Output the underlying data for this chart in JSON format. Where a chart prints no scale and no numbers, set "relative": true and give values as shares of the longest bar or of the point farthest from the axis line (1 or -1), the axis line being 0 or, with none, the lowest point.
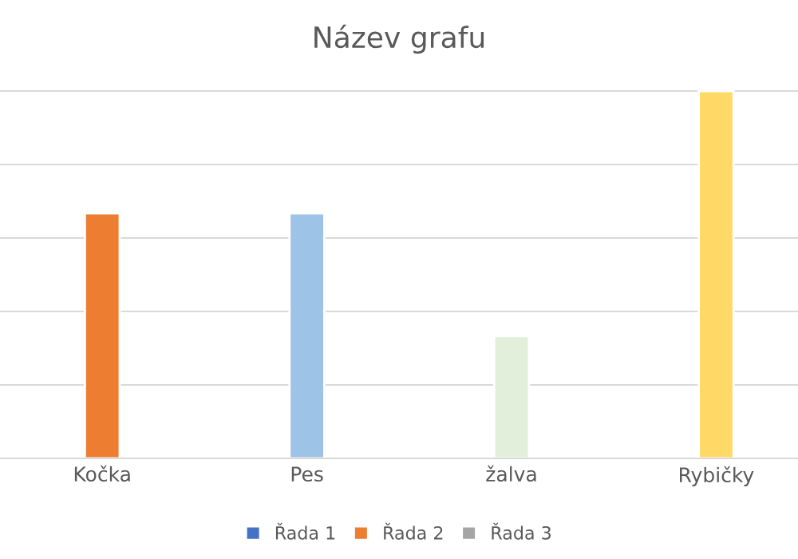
{
  "chart_data": {
    "type": "bar",
    "title": "Název grafu",
    "relative": true,
    "grid": "y",
    "legend": "bottom",
    "categories": [
      "Kočka",
      "Pes",
      "žalva",
      "Rybičky"
    ],
    "series": [
      {
        "name": "Řada 1",
        "color": "#4472c4",
        "colors": [
          "#ed7d31",
          "#9dc3e6",
          "#e2efda",
          "#ffd966"
        ],
        "values": [
          0.667,
          0.667,
          0.333,
          1
        ]
      },
      {
        "name": "Řada 2",
        "color": "#ed7d31",
        "values": [
          null,
          null,
          null,
          null
        ]
      },
      {
        "name": "Řada 3",
        "color": "#a5a5a5",
        "values": [
          null,
          null,
          null,
          null
        ]
      }
    ]
  }
}
